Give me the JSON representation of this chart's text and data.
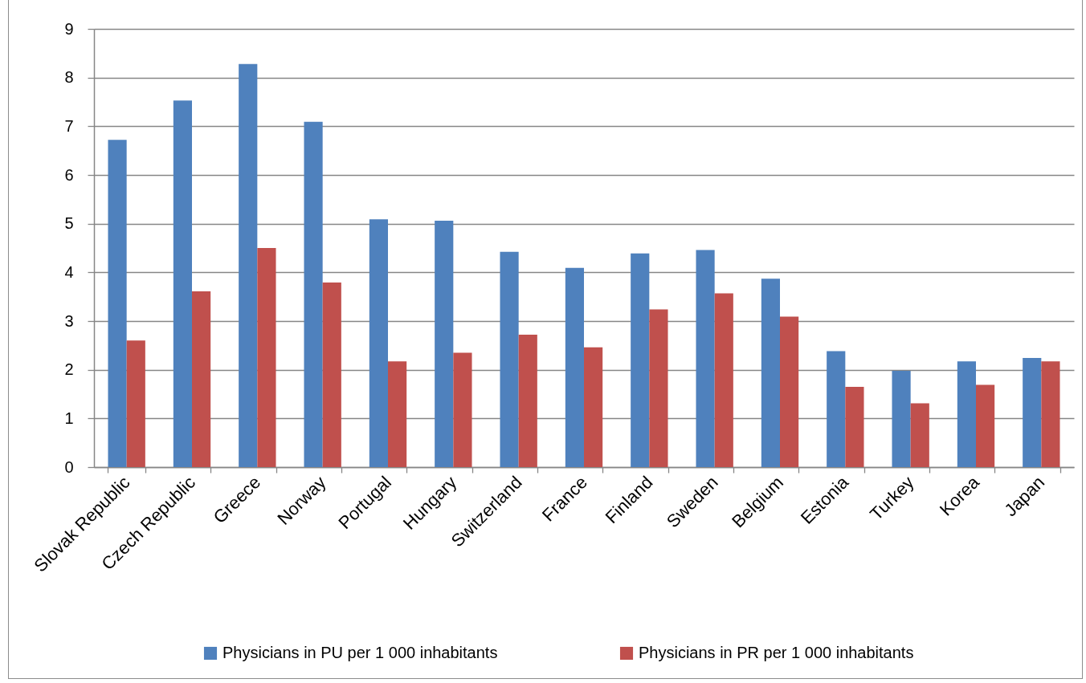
{
  "chart_data": {
    "type": "bar",
    "categories": [
      "Slovak Republic",
      "Czech Republic",
      "Greece",
      "Norway",
      "Portugal",
      "Hungary",
      "Switzerland",
      "France",
      "Finland",
      "Sweden",
      "Belgium",
      "Estonia",
      "Turkey",
      "Korea",
      "Japan"
    ],
    "series": [
      {
        "name": "Physicians in PU per 1 000 inhabitants",
        "color": "#4f81bd",
        "values": [
          6.72,
          7.53,
          8.28,
          7.09,
          5.09,
          5.06,
          4.42,
          4.09,
          4.39,
          4.46,
          3.87,
          2.38,
          1.98,
          2.17,
          2.24
        ]
      },
      {
        "name": "Physicians in PR per 1 000 inhabitants",
        "color": "#c0504d",
        "values": [
          2.6,
          3.61,
          4.5,
          3.79,
          2.17,
          2.35,
          2.72,
          2.46,
          3.24,
          3.57,
          3.09,
          1.65,
          1.31,
          1.69,
          2.17
        ]
      }
    ],
    "ylim": [
      0,
      9
    ],
    "yticks": [
      0,
      1,
      2,
      3,
      4,
      5,
      6,
      7,
      8,
      9
    ],
    "grid": "y",
    "legend": "bottom"
  }
}
